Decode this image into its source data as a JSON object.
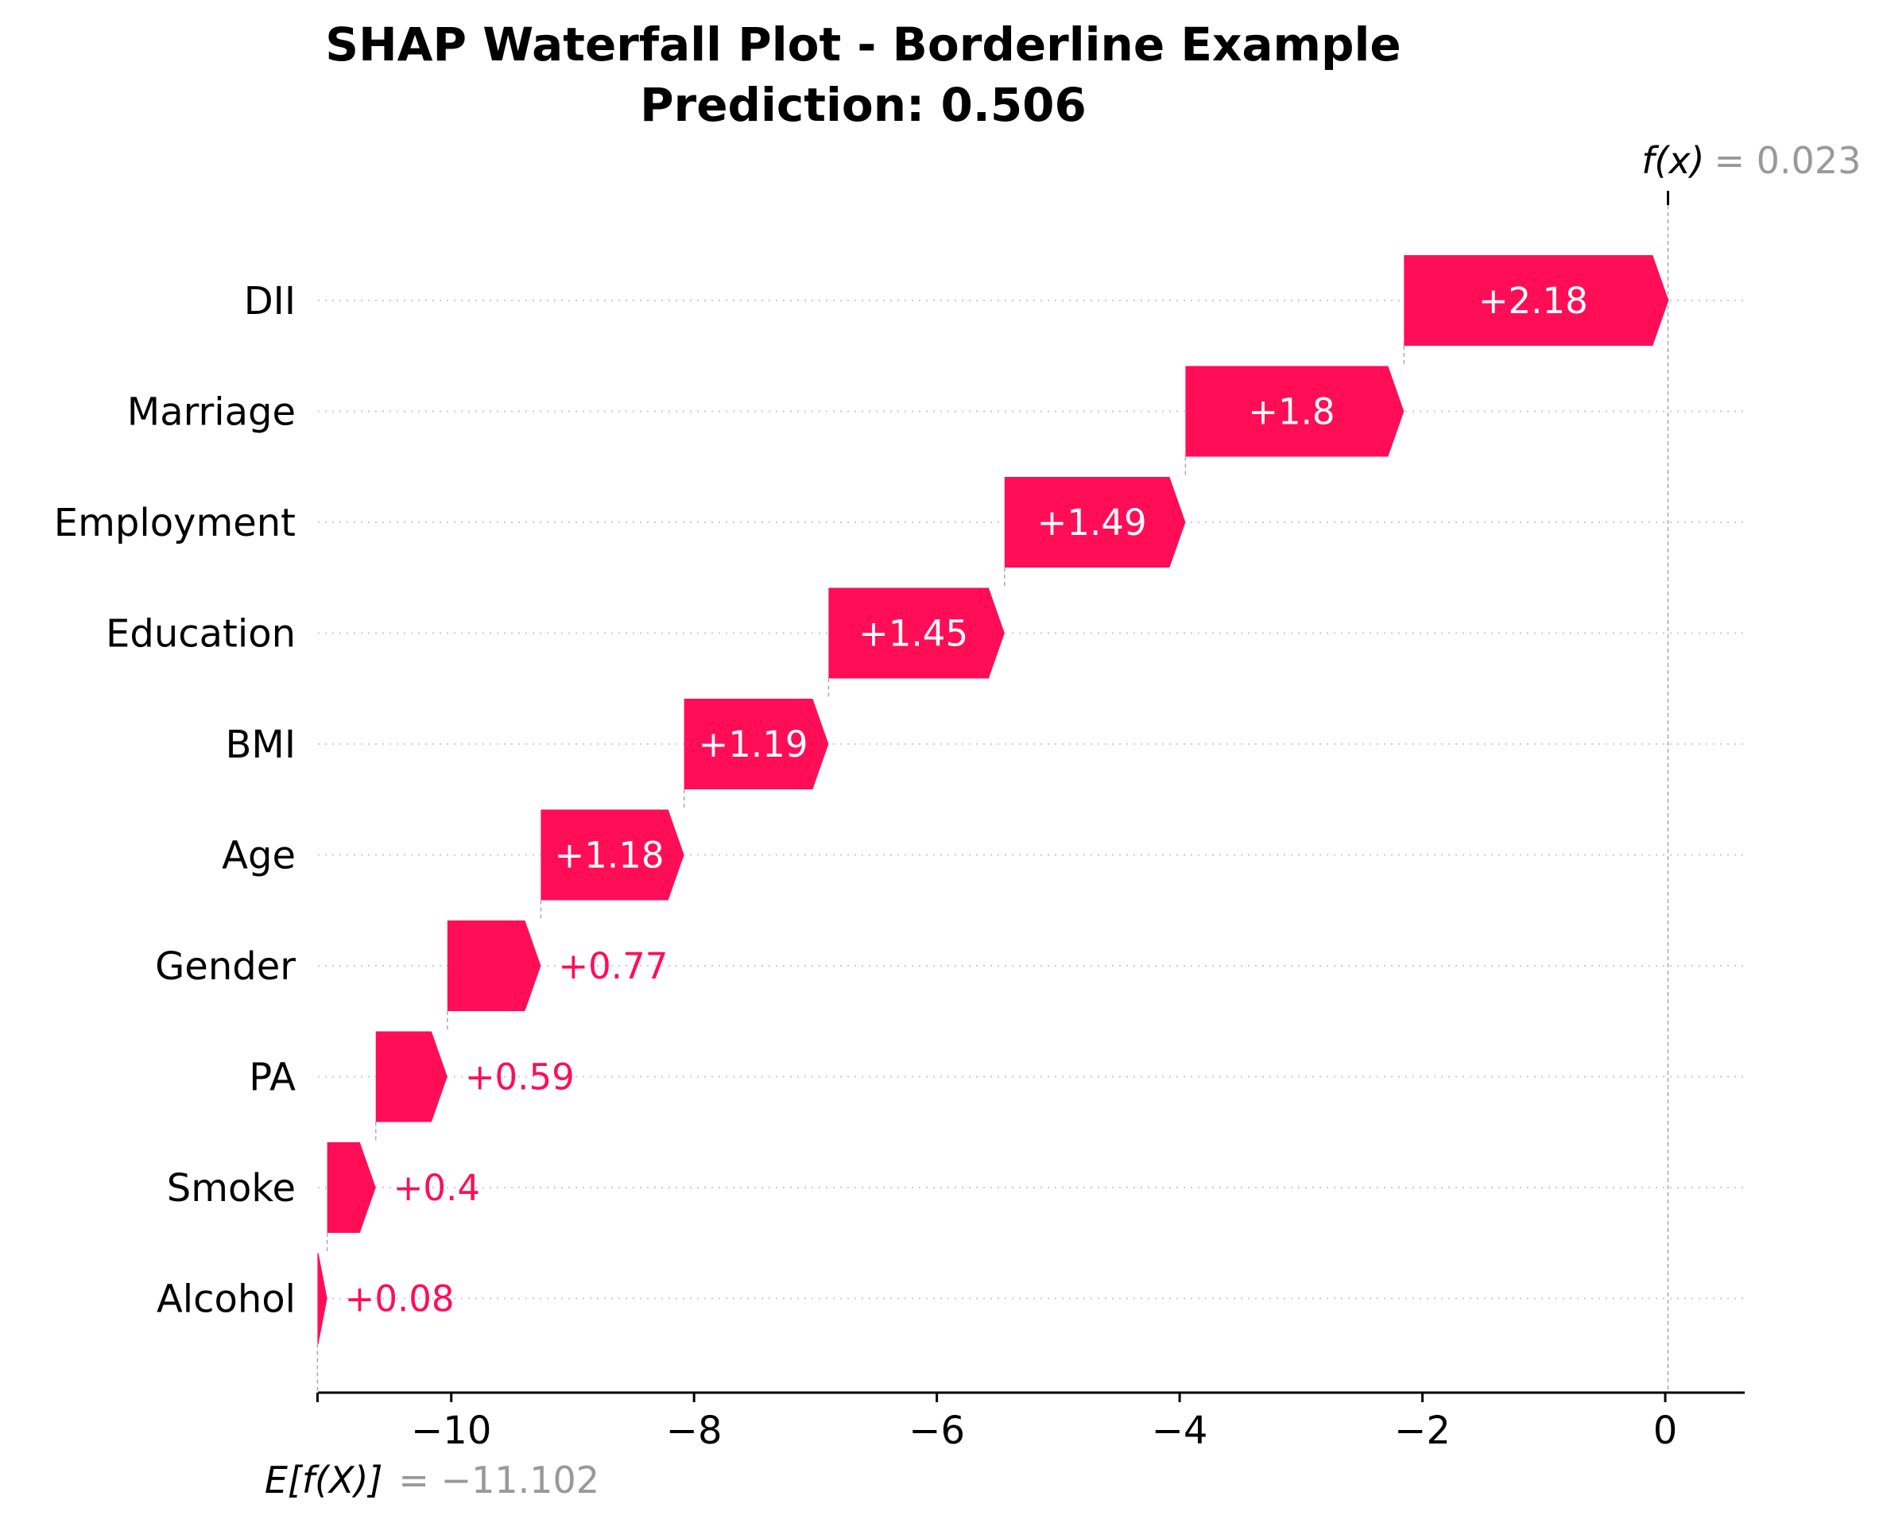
{
  "chart_data": {
    "type": "bar",
    "subtype": "shap-waterfall",
    "title": "SHAP Waterfall Plot - Borderline Example",
    "subtitle": "Prediction: 0.506",
    "base_value": {
      "label": "E[f(X)]",
      "value": -11.102,
      "value_text": "= −11.102"
    },
    "output_value": {
      "label": "f(x)",
      "value": 0.023,
      "value_text": "= 0.023"
    },
    "features": [
      {
        "name": "DII",
        "shap": 2.18,
        "label": "+2.18",
        "label_inside": true
      },
      {
        "name": "Marriage",
        "shap": 1.8,
        "label": "+1.8",
        "label_inside": true
      },
      {
        "name": "Employment",
        "shap": 1.49,
        "label": "+1.49",
        "label_inside": true
      },
      {
        "name": "Education",
        "shap": 1.45,
        "label": "+1.45",
        "label_inside": true
      },
      {
        "name": "BMI",
        "shap": 1.19,
        "label": "+1.19",
        "label_inside": true
      },
      {
        "name": "Age",
        "shap": 1.18,
        "label": "+1.18",
        "label_inside": true
      },
      {
        "name": "Gender",
        "shap": 0.77,
        "label": "+0.77",
        "label_inside": false
      },
      {
        "name": "PA",
        "shap": 0.59,
        "label": "+0.59",
        "label_inside": false
      },
      {
        "name": "Smoke",
        "shap": 0.4,
        "label": "+0.4",
        "label_inside": false
      },
      {
        "name": "Alcohol",
        "shap": 0.08,
        "label": "+0.08",
        "label_inside": false
      }
    ],
    "xlim": [
      -11.102,
      0.023
    ],
    "xticks": [
      {
        "value": -10,
        "label": "−10"
      },
      {
        "value": -8,
        "label": "−8"
      },
      {
        "value": -6,
        "label": "−6"
      },
      {
        "value": -4,
        "label": "−4"
      },
      {
        "value": -2,
        "label": "−2"
      },
      {
        "value": 0,
        "label": "0"
      }
    ],
    "colors": {
      "positive": "#ff0d57",
      "positive_text_outside": "#ff0d57",
      "inside_text": "#ffffff",
      "annotation_value": "#999999"
    },
    "grid": "horizontal dotted"
  }
}
